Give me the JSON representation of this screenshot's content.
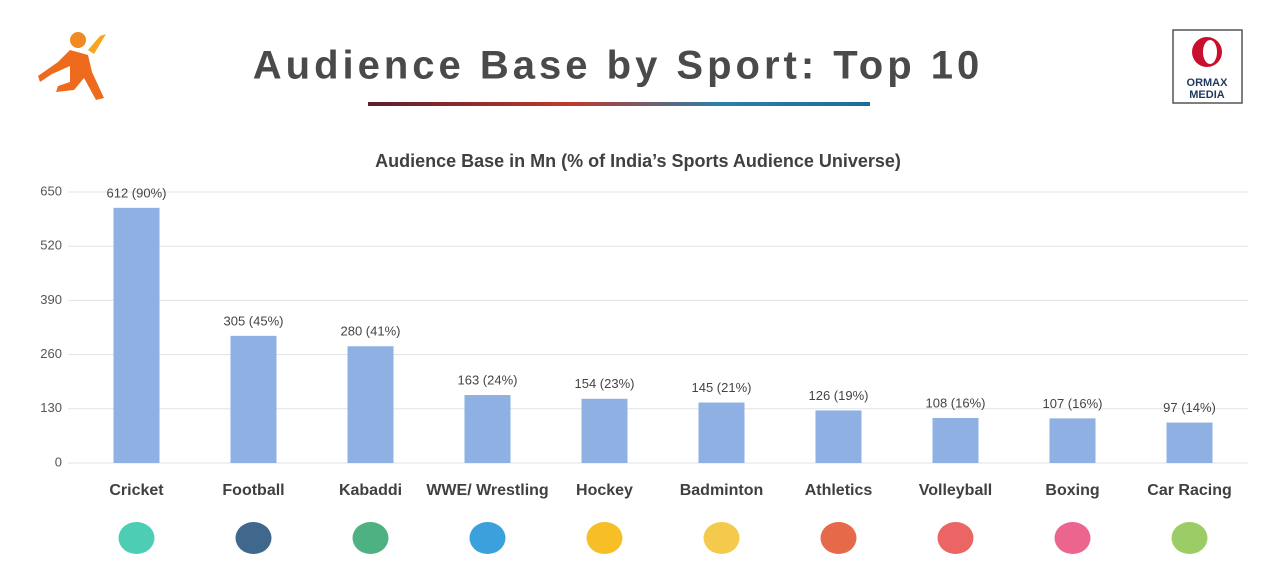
{
  "header": {
    "title": "Audience Base by Sport: Top 10",
    "logo": [
      "ORMAX",
      "MEDIA"
    ]
  },
  "chart_data": {
    "type": "bar",
    "title": "Audience Base in Mn (% of India’s Sports Audience Universe)",
    "categories": [
      "Cricket",
      "Football",
      "Kabaddi",
      "WWE/ Wrestling",
      "Hockey",
      "Badminton",
      "Athletics",
      "Volleyball",
      "Boxing",
      "Car Racing"
    ],
    "values": [
      612,
      305,
      280,
      163,
      154,
      145,
      126,
      108,
      107,
      97
    ],
    "value_labels": [
      "612 (90%)",
      "305 (45%)",
      "280 (41%)",
      "163 (24%)",
      "154 (23%)",
      "145 (21%)",
      "126 (19%)",
      "108 (16%)",
      "107 (16%)",
      "97 (14%)"
    ],
    "color": "#8eb0e3",
    "ylim": [
      0,
      650
    ],
    "yticks": [
      0,
      130,
      260,
      390,
      520,
      650
    ],
    "grid": true
  }
}
